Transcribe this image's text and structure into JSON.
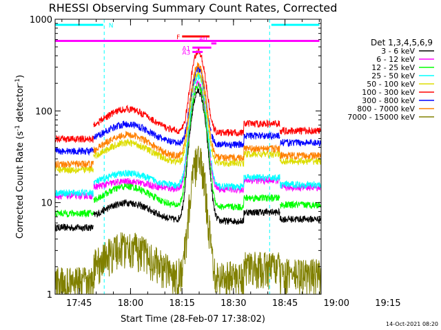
{
  "chart_data": {
    "type": "line",
    "title": "RHESSI Observing Summary Count Rates, Corrected",
    "xlabel": "Start Time (28-Feb-07 17:38:02)",
    "ylabel_main": "Corrected Count Rate (s",
    "ylabel_sup1": "-1",
    "ylabel_mid": " detector",
    "ylabel_sup2": "-1",
    "ylabel_end": ")",
    "yscale": "log",
    "ylim": [
      1,
      1000
    ],
    "xlim_min": [
      0,
      77.5
    ],
    "y_ticks": [
      {
        "value": 1,
        "label": "1"
      },
      {
        "value": 10,
        "label": "10"
      },
      {
        "value": 100,
        "label": "100"
      },
      {
        "value": 1000,
        "label": "1000"
      }
    ],
    "x_ticks": [
      {
        "minute": 6.97,
        "label": "17:45"
      },
      {
        "minute": 21.97,
        "label": "18:00"
      },
      {
        "minute": 36.97,
        "label": "18:15"
      },
      {
        "minute": 51.97,
        "label": "18:30"
      },
      {
        "minute": 66.97,
        "label": "18:45"
      },
      {
        "minute": 81.97,
        "label": "19:00"
      },
      {
        "minute": 96.97,
        "label": "19:15"
      }
    ],
    "legend_title": "Det 1,3,4,5,6,9",
    "legend_position": "right",
    "series": [
      {
        "name": "3 - 6 keV",
        "color": "#000000",
        "base": 6.3,
        "peak": 10,
        "flare": 165
      },
      {
        "name": "6 - 12 keV",
        "color": "#ff00ff",
        "base": 14,
        "peak": 17,
        "flare": 200
      },
      {
        "name": "12 - 25 keV",
        "color": "#00ff00",
        "base": 9,
        "peak": 15,
        "flare": 190
      },
      {
        "name": "25 - 50 keV",
        "color": "#00ffff",
        "base": 15,
        "peak": 21,
        "flare": 240
      },
      {
        "name": "50 - 100 keV",
        "color": "#dddd00",
        "base": 27,
        "peak": 45,
        "flare": 260
      },
      {
        "name": "100 - 300 keV",
        "color": "#ff0000",
        "base": 58,
        "peak": 105,
        "flare": 450
      },
      {
        "name": "300 - 800 keV",
        "color": "#0000ff",
        "base": 43,
        "peak": 72,
        "flare": 290
      },
      {
        "name": "800 - 7000 keV",
        "color": "#ff8000",
        "base": 31,
        "peak": 55,
        "flare": 320
      },
      {
        "name": "7000 - 15000 keV",
        "color": "#808000",
        "base": 1.6,
        "peak": 3.4,
        "flare": 30
      }
    ],
    "flag_bars": [
      {
        "label": "N",
        "color": "#00ffff",
        "y_count": 870,
        "segments": [
          [
            0,
            14
          ],
          [
            63,
            77
          ]
        ]
      },
      {
        "label": "",
        "color": "#ff00ff",
        "y_count": 580,
        "segments": [
          [
            0,
            77
          ]
        ]
      },
      {
        "label": "F",
        "color": "#ff0000",
        "y_count": 650,
        "segments": [
          [
            37,
            45
          ]
        ]
      },
      {
        "label": "A0",
        "color": "#ff00ff",
        "y_count": 545,
        "segments": [
          [
            45.5,
            47
          ]
        ]
      },
      {
        "label": "A1",
        "color": "#ff00ff",
        "y_count": 490,
        "segments": [
          [
            40,
            45.5
          ]
        ]
      },
      {
        "label": "A3",
        "color": "#ff00ff",
        "y_count": 440,
        "segments": [
          [
            40,
            43
          ]
        ]
      }
    ],
    "saa_markers": [
      0,
      14.3,
      62.5,
      77.5
    ],
    "footer_date": "14-Oct-2021 08:20"
  }
}
